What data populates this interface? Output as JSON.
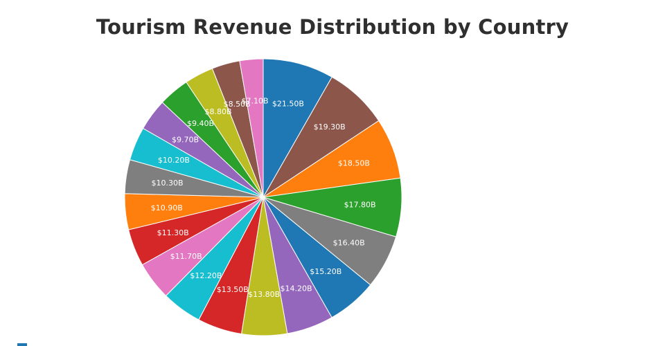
{
  "chart_data": {
    "type": "pie",
    "title": "Tourism Revenue Distribution by Country",
    "values": [
      21.5,
      19.3,
      18.5,
      17.8,
      16.4,
      15.2,
      14.2,
      13.8,
      13.5,
      12.2,
      11.7,
      11.3,
      10.9,
      10.3,
      10.2,
      9.7,
      9.4,
      8.8,
      8.5,
      7.1
    ],
    "labels": [
      "$21.50B",
      "$19.30B",
      "$18.50B",
      "$17.80B",
      "$16.40B",
      "$15.20B",
      "$14.20B",
      "$13.80B",
      "$13.50B",
      "$12.20B",
      "$11.70B",
      "$11.30B",
      "$10.90B",
      "$10.30B",
      "$10.20B",
      "$9.70B",
      "$9.40B",
      "$8.80B",
      "$8.50B",
      "$7.10B"
    ],
    "colors": [
      "#1f77b4",
      "#8c564b",
      "#ff7f0e",
      "#2ca02c",
      "#7f7f7f",
      "#1f77b4",
      "#9467bd",
      "#bcbd22",
      "#d62728",
      "#17becf",
      "#e377c2",
      "#d62728",
      "#ff7f0e",
      "#7f7f7f",
      "#17becf",
      "#9467bd",
      "#2ca02c",
      "#bcbd22",
      "#8c564b",
      "#e377c2"
    ],
    "direction": "clockwise",
    "start": "top",
    "legend_color": "#1f77b4"
  }
}
